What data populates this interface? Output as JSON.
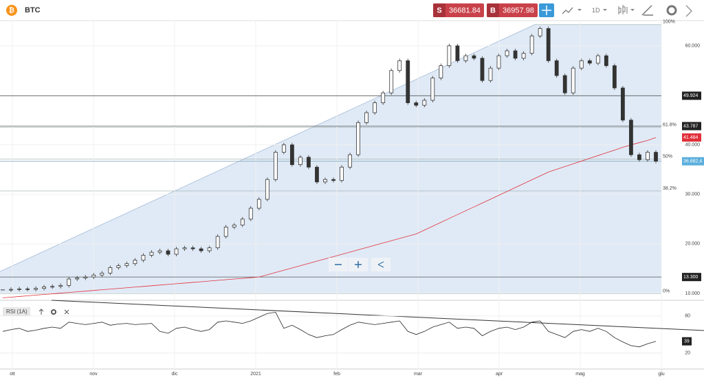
{
  "toolbar": {
    "symbol": "BTC",
    "sell_label": "S",
    "sell_price": "36681.84",
    "buy_label": "B",
    "buy_price": "36957.98",
    "interval": "1D"
  },
  "chart_data": {
    "type": "candlestick",
    "closes": [
      10700,
      10800,
      10900,
      10800,
      11000,
      11300,
      11400,
      11600,
      12900,
      13100,
      13300,
      13700,
      14100,
      15200,
      15600,
      16000,
      16700,
      17700,
      18300,
      18600,
      17900,
      19000,
      19200,
      19000,
      18600,
      19200,
      21500,
      23400,
      23800,
      25000,
      27200,
      29000,
      33000,
      38500,
      40000,
      36000,
      37500,
      35500,
      32500,
      33000,
      32800,
      35500,
      38000,
      44500,
      46500,
      48500,
      50500,
      55000,
      57000,
      48500,
      48000,
      49000,
      53500,
      56000,
      60000,
      57000,
      58000,
      57500,
      53000,
      55500,
      58000,
      59000,
      57500,
      58500,
      62000,
      63500,
      57000,
      54000,
      50500,
      55500,
      57000,
      56500,
      58000,
      56000,
      51500,
      45000,
      38000,
      37000,
      38500,
      36700
    ],
    "ma": [
      9100,
      9230,
      9370,
      9500,
      9640,
      9780,
      9910,
      10050,
      10180,
      10320,
      10450,
      10590,
      10730,
      10860,
      11000,
      11130,
      11270,
      11400,
      11540,
      11680,
      11810,
      11950,
      12080,
      12220,
      12350,
      12490,
      12630,
      12760,
      12900,
      13030,
      13170,
      13300,
      13760,
      14220,
      14670,
      15130,
      15590,
      16050,
      16510,
      16970,
      17420,
      17880,
      18340,
      18800,
      19260,
      19720,
      20170,
      20630,
      21090,
      21540,
      22000,
      22780,
      23560,
      24340,
      25130,
      25910,
      26690,
      27470,
      28250,
      29030,
      29810,
      30590,
      31380,
      32160,
      32940,
      33720,
      34500,
      35060,
      35610,
      36170,
      36720,
      37280,
      37830,
      38390,
      38940,
      39500,
      40000,
      40450,
      40900,
      41484
    ],
    "ma_color": "#e0303a",
    "ylim": [
      8600,
      65100
    ],
    "yticks": [
      {
        "value": 10000,
        "label": "10.000"
      },
      {
        "value": 20000,
        "label": "20.000"
      },
      {
        "value": 30000,
        "label": "30.000"
      },
      {
        "value": 40000,
        "label": "40.000"
      },
      {
        "value": 60000,
        "label": "60.000"
      }
    ],
    "price_lines": [
      {
        "value": 49924,
        "label": "49.924"
      },
      {
        "value": 43787,
        "label": "43.787"
      },
      {
        "value": 36682.4,
        "label": "36.682,4"
      },
      {
        "value": 13300,
        "label": "13.300"
      }
    ],
    "ma_tag": {
      "value": 41484,
      "label": "41.484"
    },
    "fib": [
      {
        "label": "100%",
        "price": 64300
      },
      {
        "label": "61.8%",
        "price": 43520
      },
      {
        "label": "50%",
        "price": 37100
      },
      {
        "label": "38.2%",
        "price": 30680
      },
      {
        "label": "0%",
        "price": 9900
      }
    ],
    "x_labels": [
      "ott",
      "nov",
      "dic",
      "2021",
      "feb",
      "mar",
      "apr",
      "mag",
      "giu"
    ],
    "rsi": {
      "title": "RSI (1A)",
      "values": [
        55,
        58,
        60,
        55,
        57,
        60,
        62,
        60,
        70,
        68,
        66,
        68,
        70,
        65,
        67,
        68,
        66,
        67,
        68,
        55,
        52,
        60,
        62,
        58,
        55,
        58,
        70,
        72,
        70,
        68,
        72,
        78,
        84,
        86,
        60,
        65,
        58,
        50,
        45,
        48,
        50,
        58,
        65,
        70,
        68,
        66,
        68,
        70,
        72,
        55,
        50,
        55,
        62,
        66,
        70,
        60,
        62,
        60,
        48,
        55,
        60,
        62,
        58,
        62,
        70,
        72,
        55,
        50,
        45,
        55,
        58,
        55,
        60,
        55,
        45,
        38,
        32,
        30,
        35,
        39
      ],
      "ylim": [
        2,
        102
      ],
      "yticks": [
        20,
        80
      ],
      "last_label": "39"
    }
  }
}
